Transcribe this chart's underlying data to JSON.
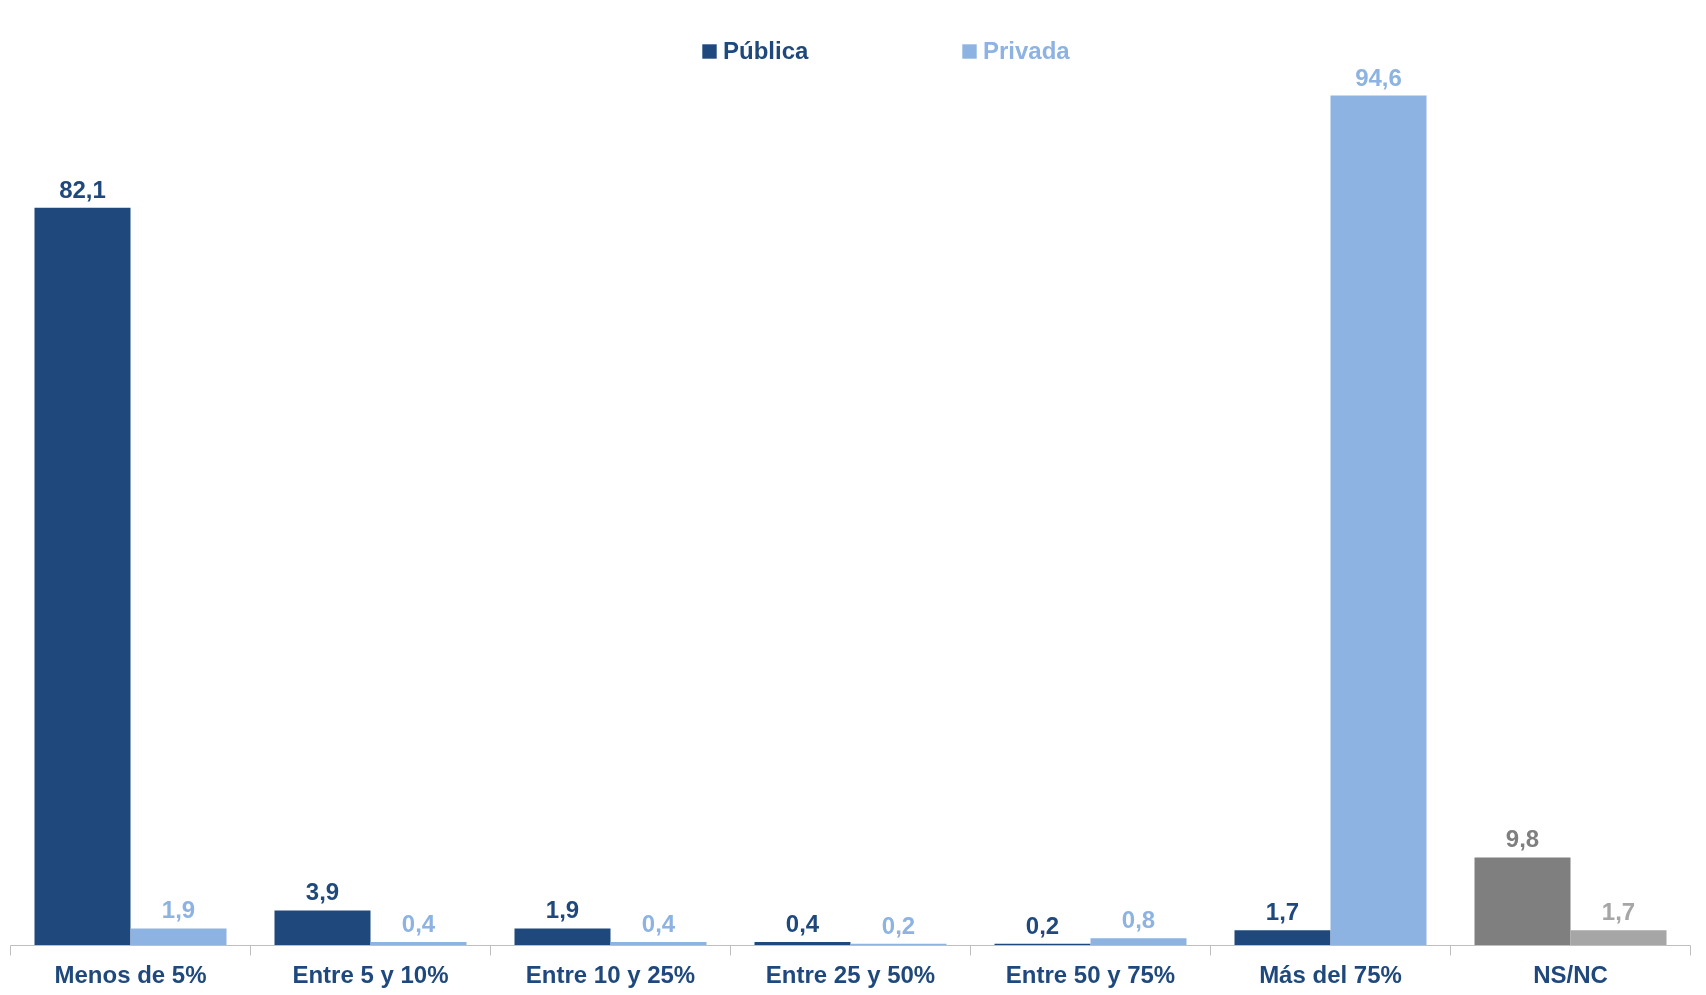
{
  "chart_data": {
    "type": "bar",
    "categories": [
      "Menos de 5%",
      "Entre 5 y 10%",
      "Entre 10 y 25%",
      "Entre 25 y 50%",
      "Entre 50 y 75%",
      "Más del 75%",
      "NS/NC"
    ],
    "series": [
      {
        "name": "Pública",
        "color": "#1f497d",
        "colors": [
          "#1f497d",
          "#1f497d",
          "#1f497d",
          "#1f497d",
          "#1f497d",
          "#1f497d",
          "#7f7f7f"
        ],
        "values": [
          82.1,
          3.9,
          1.9,
          0.4,
          0.2,
          1.7,
          9.8
        ],
        "value_labels": [
          "82,1",
          "3,9",
          "1,9",
          "0,4",
          "0,2",
          "1,7",
          "9,8"
        ]
      },
      {
        "name": "Privada",
        "color": "#8db3e2",
        "colors": [
          "#8db3e2",
          "#8db3e2",
          "#8db3e2",
          "#8db3e2",
          "#8db3e2",
          "#8db3e2",
          "#a6a6a6"
        ],
        "values": [
          1.9,
          0.4,
          0.4,
          0.2,
          0.8,
          94.6,
          1.7
        ],
        "value_labels": [
          "1,9",
          "0,4",
          "0,4",
          "0,2",
          "0,8",
          "94,6",
          "1,7"
        ]
      }
    ],
    "legend": "top",
    "grid": false
  }
}
